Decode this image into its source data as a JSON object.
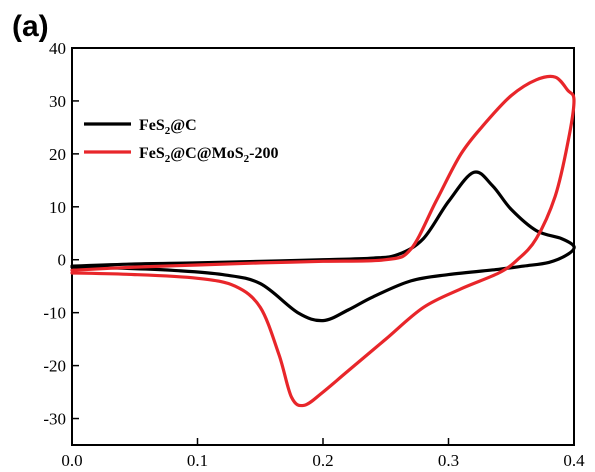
{
  "panel_label": "(a)",
  "chart_data": {
    "type": "line",
    "title": "",
    "xlabel": "",
    "ylabel": "",
    "xlim": [
      0.0,
      0.4
    ],
    "ylim": [
      -35,
      40
    ],
    "x_ticks": [
      "0.0",
      "0.1",
      "0.2",
      "0.3",
      "0.4"
    ],
    "y_ticks": [
      "40",
      "30",
      "20",
      "10",
      "0",
      "-10",
      "-20",
      "-30"
    ],
    "grid": false,
    "legend_position": "top-left",
    "series": [
      {
        "name_parts": [
          "FeS",
          "2",
          "@C"
        ],
        "color": "#000000",
        "points": [
          [
            0.0,
            -1.2
          ],
          [
            0.05,
            -0.8
          ],
          [
            0.1,
            -0.6
          ],
          [
            0.15,
            -0.3
          ],
          [
            0.2,
            0.0
          ],
          [
            0.24,
            0.3
          ],
          [
            0.26,
            1.0
          ],
          [
            0.28,
            4.0
          ],
          [
            0.3,
            11.0
          ],
          [
            0.32,
            16.5
          ],
          [
            0.335,
            14.0
          ],
          [
            0.35,
            9.5
          ],
          [
            0.37,
            5.5
          ],
          [
            0.39,
            4.0
          ],
          [
            0.4,
            2.5
          ],
          [
            0.395,
            1.0
          ],
          [
            0.38,
            -0.5
          ],
          [
            0.36,
            -1.2
          ],
          [
            0.34,
            -1.8
          ],
          [
            0.3,
            -2.8
          ],
          [
            0.27,
            -4.0
          ],
          [
            0.24,
            -7.0
          ],
          [
            0.22,
            -9.5
          ],
          [
            0.2,
            -11.5
          ],
          [
            0.18,
            -10.0
          ],
          [
            0.15,
            -4.5
          ],
          [
            0.12,
            -2.8
          ],
          [
            0.08,
            -2.0
          ],
          [
            0.04,
            -1.6
          ],
          [
            0.0,
            -1.4
          ]
        ]
      },
      {
        "name_parts": [
          "FeS",
          "2",
          "@C@MoS",
          "2",
          "-200"
        ],
        "color": "#e8262a",
        "points": [
          [
            0.0,
            -2.0
          ],
          [
            0.05,
            -1.4
          ],
          [
            0.1,
            -1.0
          ],
          [
            0.15,
            -0.6
          ],
          [
            0.2,
            -0.3
          ],
          [
            0.25,
            0.0
          ],
          [
            0.27,
            2.0
          ],
          [
            0.29,
            11.0
          ],
          [
            0.31,
            20.0
          ],
          [
            0.33,
            26.0
          ],
          [
            0.35,
            31.0
          ],
          [
            0.37,
            34.0
          ],
          [
            0.385,
            34.5
          ],
          [
            0.395,
            32.0
          ],
          [
            0.4,
            30.0
          ],
          [
            0.395,
            22.0
          ],
          [
            0.385,
            12.0
          ],
          [
            0.37,
            4.0
          ],
          [
            0.355,
            0.0
          ],
          [
            0.34,
            -2.5
          ],
          [
            0.31,
            -5.5
          ],
          [
            0.28,
            -9.0
          ],
          [
            0.25,
            -15.0
          ],
          [
            0.22,
            -21.0
          ],
          [
            0.2,
            -25.0
          ],
          [
            0.185,
            -27.5
          ],
          [
            0.175,
            -26.0
          ],
          [
            0.165,
            -18.0
          ],
          [
            0.15,
            -9.0
          ],
          [
            0.13,
            -5.0
          ],
          [
            0.1,
            -3.5
          ],
          [
            0.05,
            -2.8
          ],
          [
            0.0,
            -2.5
          ]
        ]
      }
    ]
  }
}
